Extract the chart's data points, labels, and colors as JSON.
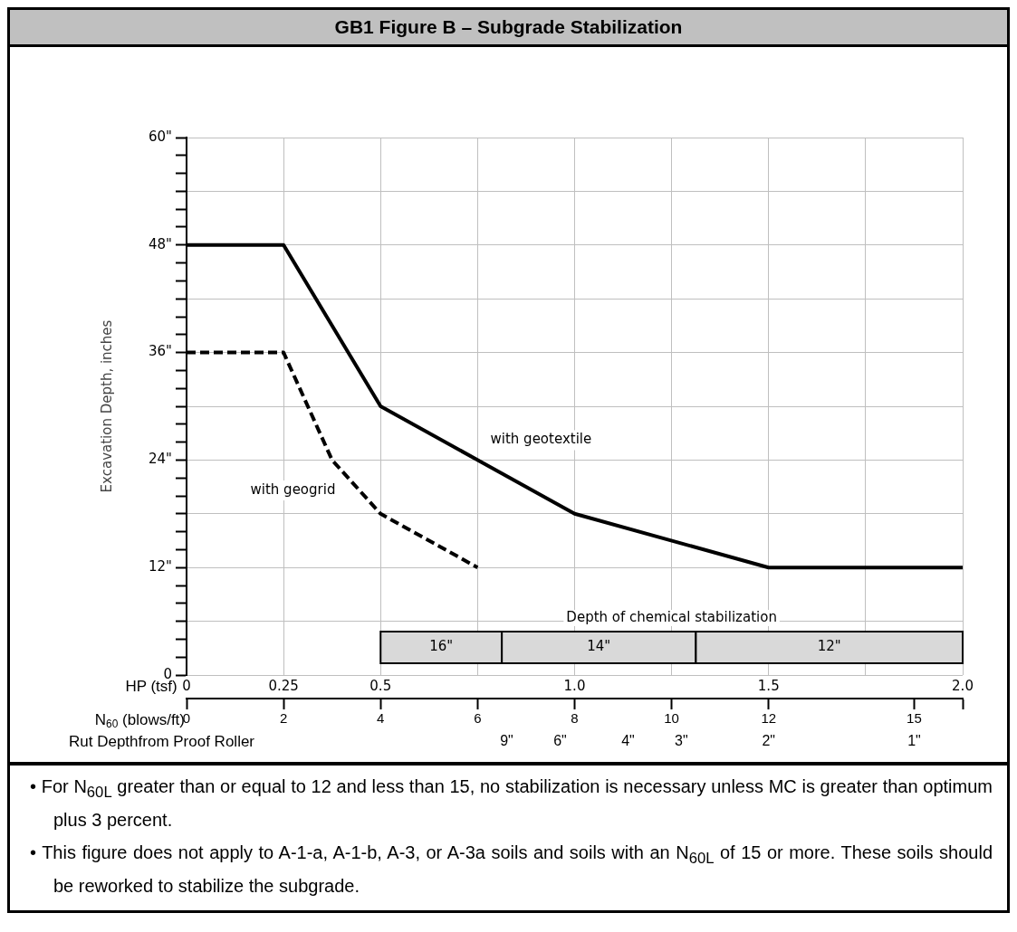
{
  "chart_data": {
    "type": "line",
    "title": "GB1 Figure B – Subgrade Stabilization",
    "ylabel": "Excavation Depth, inches",
    "xlabel": "HP (tsf)",
    "x2label": "N$_{60}$ (blows/ft)",
    "xlim": [
      0,
      2
    ],
    "xticks": [
      0,
      0.25,
      0.5,
      {
        "value": 0.75,
        "label": null
      },
      {
        "value": 1,
        "label": "1.0"
      },
      {
        "value": 1.25,
        "label": null
      },
      1.5,
      {
        "value": 1.75,
        "label": null
      },
      {
        "value": 2,
        "label": "2.0"
      }
    ],
    "x2lim": [
      0,
      16
    ],
    "x2ticks": [
      0,
      2,
      4,
      6,
      8,
      10,
      12,
      15,
      {
        "value": 16,
        "label": null
      }
    ],
    "ylim": [
      0,
      60
    ],
    "yticks": [
      0,
      {
        "value": 2,
        "label": null
      },
      {
        "value": 4,
        "label": null
      },
      {
        "value": 6,
        "label": null
      },
      {
        "value": 8,
        "label": null
      },
      {
        "value": 10,
        "label": null
      },
      {
        "value": 12,
        "label": "12\""
      },
      {
        "value": 14,
        "label": null
      },
      {
        "value": 16,
        "label": null
      },
      {
        "value": 18,
        "label": null
      },
      {
        "value": 20,
        "label": null
      },
      {
        "value": 22,
        "label": null
      },
      {
        "value": 24,
        "label": "24\""
      },
      {
        "value": 26,
        "label": null
      },
      {
        "value": 28,
        "label": null
      },
      {
        "value": 30,
        "label": null
      },
      {
        "value": 32,
        "label": null
      },
      {
        "value": 34,
        "label": null
      },
      {
        "value": 36,
        "label": "36\""
      },
      {
        "value": 38,
        "label": null
      },
      {
        "value": 40,
        "label": null
      },
      {
        "value": 42,
        "label": null
      },
      {
        "value": 44,
        "label": null
      },
      {
        "value": 46,
        "label": null
      },
      {
        "value": 48,
        "label": "48\""
      },
      {
        "value": 50,
        "label": null
      },
      {
        "value": 52,
        "label": null
      },
      {
        "value": 54,
        "label": null
      },
      {
        "value": 56,
        "label": null
      },
      {
        "value": 58,
        "label": null
      },
      {
        "value": 60,
        "label": "60\""
      }
    ],
    "grid": true,
    "legend": false,
    "marker": "none",
    "series": [
      {
        "name": "with geotextile",
        "color": "#000000",
        "line_style": "solid",
        "x": [
          0,
          0.25,
          0.5,
          1,
          1.5,
          2
        ],
        "values": [
          48,
          48,
          30,
          18,
          12,
          12
        ]
      },
      {
        "name": "with geogrid",
        "color": "#000000",
        "line_style": "dashed",
        "x": [
          0,
          0.25,
          0.375,
          0.5,
          0.75
        ],
        "values": [
          36,
          36,
          24,
          18,
          12
        ]
      }
    ],
    "bands": [
      {
        "axis": "x",
        "from": 0.5,
        "to": 0.8125,
        "label": "16\"",
        "color": "#d9d9d9"
      },
      {
        "axis": "x",
        "from": 0.8125,
        "to": 1.3125,
        "label": "14\"",
        "color": "#d9d9d9"
      },
      {
        "axis": "x",
        "from": 1.3125,
        "to": 2,
        "label": "12\"",
        "color": "#d9d9d9"
      }
    ],
    "annotations": [
      "Depth of chemical stabilization",
      "Rut Depthfrom Proof Roller",
      "9\"",
      "6\"",
      "4\"",
      "3\"",
      "2\"",
      "1\"",
      "• For N$_{60L}$ greater than or equal to 12 and less than 15, no stabilization is necessary unless MC is greater than optimum plus 3 percent.",
      "• This figure does not apply to A-1-a, A-1-b, A-3, or A-3a soils and soils with an N$_{60L}$ of 15 or more.  These soils should be reworked to stabilize the subgrade."
    ]
  }
}
